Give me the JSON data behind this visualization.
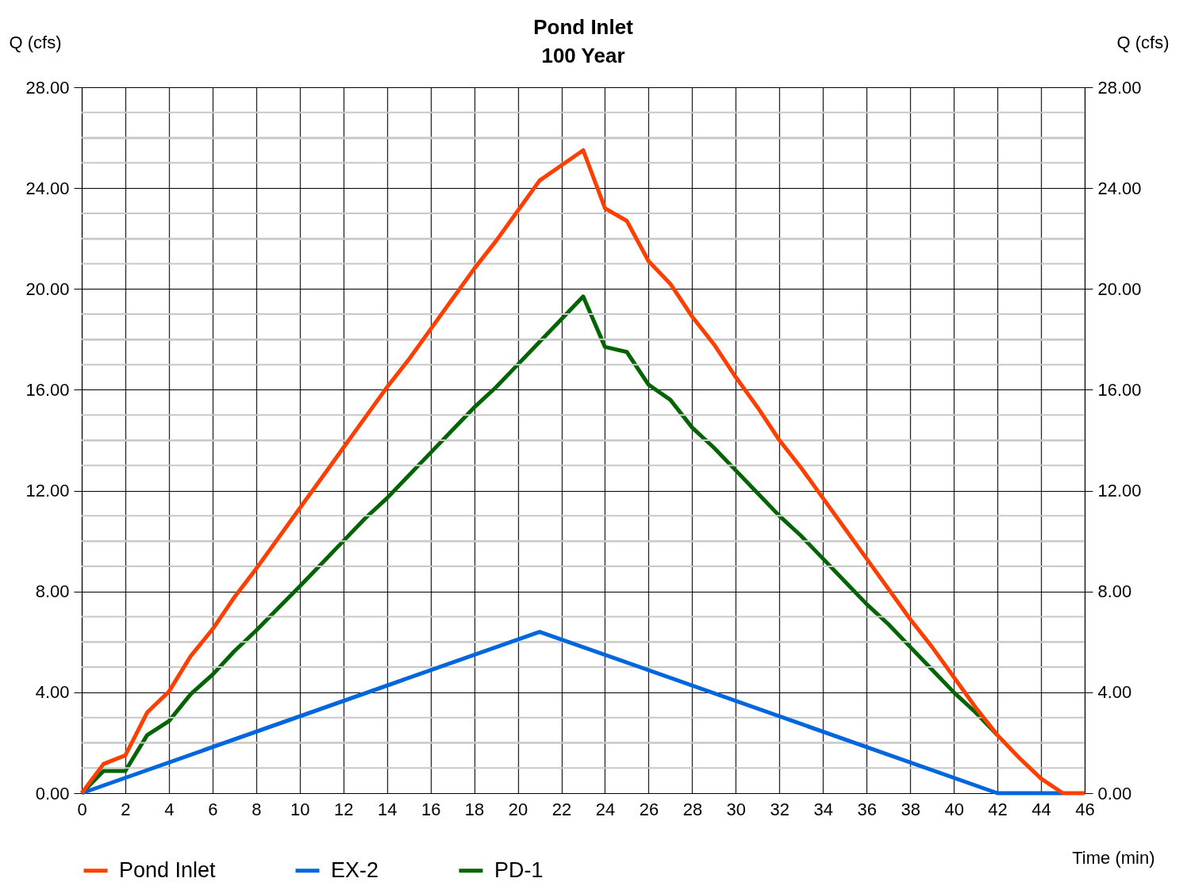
{
  "chart_data": {
    "type": "line",
    "title": "Pond Inlet",
    "subtitle": "100 Year",
    "xlabel": "Time (min)",
    "ylabel": "Q (cfs)",
    "y2label": "Q (cfs)",
    "x": [
      0,
      1,
      2,
      3,
      4,
      5,
      6,
      7,
      8,
      9,
      10,
      11,
      12,
      13,
      14,
      15,
      16,
      17,
      18,
      19,
      20,
      21,
      22,
      23,
      24,
      25,
      26,
      27,
      28,
      29,
      30,
      31,
      32,
      33,
      34,
      35,
      36,
      37,
      38,
      39,
      40,
      41,
      42,
      43,
      44,
      45,
      46
    ],
    "series": [
      {
        "name": "Pond Inlet",
        "color": "#ff3f00",
        "values": [
          0,
          1.16,
          1.5,
          3.2,
          4.03,
          5.44,
          6.5,
          7.77,
          8.9,
          10.1,
          11.3,
          12.5,
          13.7,
          14.9,
          16.1,
          17.2,
          18.4,
          19.6,
          20.8,
          21.9,
          23.1,
          24.3,
          24.9,
          25.5,
          23.2,
          22.7,
          21.1,
          20.2,
          18.9,
          17.8,
          16.5,
          15.3,
          14.0,
          12.9,
          11.7,
          10.5,
          9.3,
          8.1,
          6.9,
          5.8,
          4.6,
          3.4,
          2.3,
          1.4,
          0.58,
          0,
          0
        ]
      },
      {
        "name": "EX-2",
        "color": "#0066dd",
        "x": [
          0,
          21,
          42,
          45
        ],
        "values": [
          0,
          6.4,
          0,
          0
        ]
      },
      {
        "name": "PD-1",
        "color": "#006400",
        "values": [
          0,
          0.88,
          0.88,
          2.3,
          2.86,
          3.93,
          4.7,
          5.63,
          6.45,
          7.33,
          8.2,
          9.1,
          10.0,
          10.9,
          11.7,
          12.6,
          13.5,
          14.4,
          15.3,
          16.1,
          17.0,
          17.9,
          18.8,
          19.7,
          17.7,
          17.5,
          16.2,
          15.6,
          14.5,
          13.7,
          12.8,
          11.9,
          11.0,
          10.2,
          9.3,
          8.4,
          7.5,
          6.7,
          5.8,
          4.9,
          4.0,
          3.2,
          2.3,
          null,
          null,
          null,
          null
        ]
      }
    ],
    "xlim": [
      0,
      46
    ],
    "xticks": [
      0,
      2,
      4,
      6,
      8,
      10,
      12,
      14,
      16,
      18,
      20,
      22,
      24,
      26,
      28,
      30,
      32,
      34,
      36,
      38,
      40,
      42,
      44,
      46
    ],
    "ylim": [
      0,
      28
    ],
    "yticks": [
      {
        "value": 0,
        "label": "0.00"
      },
      {
        "value": 1,
        "label": null
      },
      {
        "value": 2,
        "label": null
      },
      {
        "value": 3,
        "label": null
      },
      {
        "value": 4,
        "label": "4.00"
      },
      {
        "value": 5,
        "label": null
      },
      {
        "value": 6,
        "label": null
      },
      {
        "value": 7,
        "label": null
      },
      {
        "value": 8,
        "label": "8.00"
      },
      {
        "value": 9,
        "label": null
      },
      {
        "value": 10,
        "label": null
      },
      {
        "value": 11,
        "label": null
      },
      {
        "value": 12,
        "label": "12.00"
      },
      {
        "value": 13,
        "label": null
      },
      {
        "value": 14,
        "label": null
      },
      {
        "value": 15,
        "label": null
      },
      {
        "value": 16,
        "label": "16.00"
      },
      {
        "value": 17,
        "label": null
      },
      {
        "value": 18,
        "label": null
      },
      {
        "value": 19,
        "label": null
      },
      {
        "value": 20,
        "label": "20.00"
      },
      {
        "value": 21,
        "label": null
      },
      {
        "value": 22,
        "label": null
      },
      {
        "value": 23,
        "label": null
      },
      {
        "value": 24,
        "label": "24.00"
      },
      {
        "value": 25,
        "label": null
      },
      {
        "value": 26,
        "label": null
      },
      {
        "value": 27,
        "label": null
      },
      {
        "value": 28,
        "label": "28.00"
      }
    ],
    "y2lim": [
      0,
      28
    ],
    "y2ticks": [
      {
        "value": 0,
        "label": "0.00"
      },
      {
        "value": 4,
        "label": "4.00"
      },
      {
        "value": 8,
        "label": "8.00"
      },
      {
        "value": 12,
        "label": "12.00"
      },
      {
        "value": 16,
        "label": "16.00"
      },
      {
        "value": 20,
        "label": "20.00"
      },
      {
        "value": 24,
        "label": "24.00"
      },
      {
        "value": 28,
        "label": "28.00"
      }
    ],
    "grid": true,
    "legend": "bottom",
    "marker": "none",
    "line_style": "solid"
  }
}
